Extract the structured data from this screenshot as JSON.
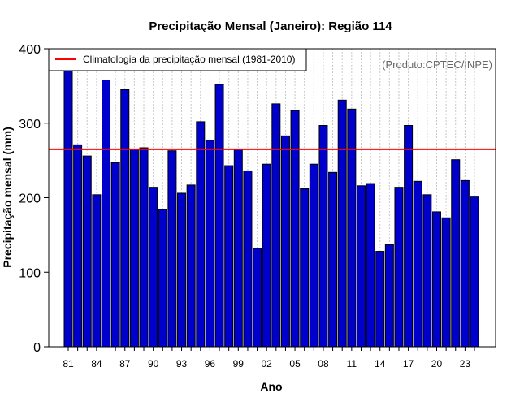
{
  "chart_data": {
    "type": "bar",
    "title": "Precipitação Mensal (Janeiro): Região 114",
    "xlabel": "Ano",
    "ylabel": "Precipitação mensal (mm)",
    "ylim": [
      0,
      400
    ],
    "yticks": [
      0,
      100,
      200,
      300,
      400
    ],
    "grid": "vertical dotted",
    "credit": "(Produto:CPTEC/INPE)",
    "bar_color": "#0000cc",
    "line_color": "#ff0000",
    "legend": {
      "position": "top-left",
      "entries": [
        {
          "label": "Climatologia da precipitação mensal (1981-2010)",
          "color": "#ff0000"
        }
      ]
    },
    "climatology": 265,
    "xtick_labels": [
      "81",
      "84",
      "87",
      "90",
      "93",
      "96",
      "99",
      "02",
      "05",
      "08",
      "11",
      "14",
      "17",
      "20",
      "23"
    ],
    "categories": [
      "1981",
      "1982",
      "1983",
      "1984",
      "1985",
      "1986",
      "1987",
      "1988",
      "1989",
      "1990",
      "1991",
      "1992",
      "1993",
      "1994",
      "1995",
      "1996",
      "1997",
      "1998",
      "1999",
      "2000",
      "2001",
      "2002",
      "2003",
      "2004",
      "2005",
      "2006",
      "2007",
      "2008",
      "2009",
      "2010",
      "2011",
      "2012",
      "2013",
      "2014",
      "2015",
      "2016",
      "2017",
      "2018",
      "2019",
      "2020",
      "2021",
      "2022",
      "2023",
      "2024"
    ],
    "values": [
      372,
      271,
      256,
      204,
      358,
      247,
      345,
      265,
      267,
      214,
      184,
      263,
      206,
      217,
      302,
      277,
      352,
      243,
      265,
      236,
      132,
      245,
      326,
      283,
      317,
      212,
      245,
      297,
      234,
      331,
      319,
      216,
      219,
      128,
      137,
      214,
      297,
      222,
      204,
      181,
      173,
      251,
      223,
      202
    ]
  }
}
